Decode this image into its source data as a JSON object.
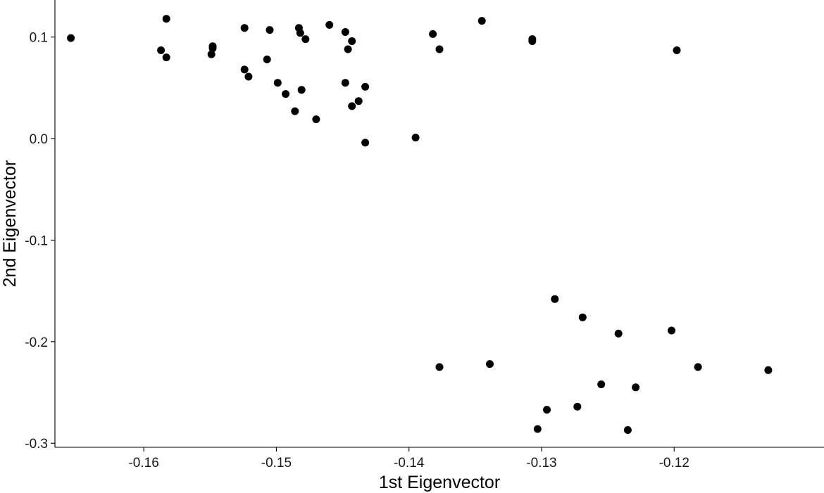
{
  "chart_data": {
    "type": "scatter",
    "title": "",
    "xlabel": "1st Eigenvector",
    "ylabel": "2nd Eigenvector",
    "xlim": [
      -0.1667,
      -0.1087
    ],
    "ylim": [
      -0.304,
      0.1365
    ],
    "x_ticks": [
      -0.16,
      -0.15,
      -0.14,
      -0.13,
      -0.12
    ],
    "x_tick_labels": [
      "-0.16",
      "-0.15",
      "-0.14",
      "-0.13",
      "-0.12"
    ],
    "y_ticks": [
      0.1,
      0.0,
      -0.1,
      -0.2,
      -0.3
    ],
    "y_tick_labels": [
      "0.1",
      "0.0",
      "-0.1",
      "-0.2",
      "-0.3"
    ],
    "grid": false,
    "legend": "none",
    "point_color": "#000000",
    "points": [
      {
        "x": -0.1655,
        "y": 0.099
      },
      {
        "x": -0.1583,
        "y": 0.118
      },
      {
        "x": -0.1587,
        "y": 0.087
      },
      {
        "x": -0.1583,
        "y": 0.08
      },
      {
        "x": -0.1548,
        "y": 0.091
      },
      {
        "x": -0.1548,
        "y": 0.089
      },
      {
        "x": -0.1549,
        "y": 0.083
      },
      {
        "x": -0.1524,
        "y": 0.109
      },
      {
        "x": -0.1505,
        "y": 0.107
      },
      {
        "x": -0.1483,
        "y": 0.109
      },
      {
        "x": -0.1482,
        "y": 0.104
      },
      {
        "x": -0.1478,
        "y": 0.098
      },
      {
        "x": -0.146,
        "y": 0.112
      },
      {
        "x": -0.1448,
        "y": 0.105
      },
      {
        "x": -0.1443,
        "y": 0.096
      },
      {
        "x": -0.1446,
        "y": 0.088
      },
      {
        "x": -0.1507,
        "y": 0.078
      },
      {
        "x": -0.1524,
        "y": 0.068
      },
      {
        "x": -0.1521,
        "y": 0.061
      },
      {
        "x": -0.1499,
        "y": 0.055
      },
      {
        "x": -0.1493,
        "y": 0.044
      },
      {
        "x": -0.1481,
        "y": 0.048
      },
      {
        "x": -0.1486,
        "y": 0.027
      },
      {
        "x": -0.147,
        "y": 0.019
      },
      {
        "x": -0.1448,
        "y": 0.055
      },
      {
        "x": -0.1433,
        "y": 0.051
      },
      {
        "x": -0.1438,
        "y": 0.037
      },
      {
        "x": -0.1443,
        "y": 0.032
      },
      {
        "x": -0.1433,
        "y": -0.004
      },
      {
        "x": -0.1395,
        "y": 0.001
      },
      {
        "x": -0.1382,
        "y": 0.103
      },
      {
        "x": -0.1377,
        "y": 0.088
      },
      {
        "x": -0.1345,
        "y": 0.116
      },
      {
        "x": -0.1307,
        "y": 0.098
      },
      {
        "x": -0.1307,
        "y": 0.096
      },
      {
        "x": -0.1198,
        "y": 0.087
      },
      {
        "x": -0.129,
        "y": -0.158
      },
      {
        "x": -0.1269,
        "y": -0.176
      },
      {
        "x": -0.1242,
        "y": -0.192
      },
      {
        "x": -0.1202,
        "y": -0.189
      },
      {
        "x": -0.1377,
        "y": -0.225
      },
      {
        "x": -0.1339,
        "y": -0.222
      },
      {
        "x": -0.1182,
        "y": -0.225
      },
      {
        "x": -0.1129,
        "y": -0.228
      },
      {
        "x": -0.1255,
        "y": -0.242
      },
      {
        "x": -0.1229,
        "y": -0.245
      },
      {
        "x": -0.1296,
        "y": -0.267
      },
      {
        "x": -0.1273,
        "y": -0.264
      },
      {
        "x": -0.1303,
        "y": -0.286
      },
      {
        "x": -0.1235,
        "y": -0.287
      }
    ]
  }
}
